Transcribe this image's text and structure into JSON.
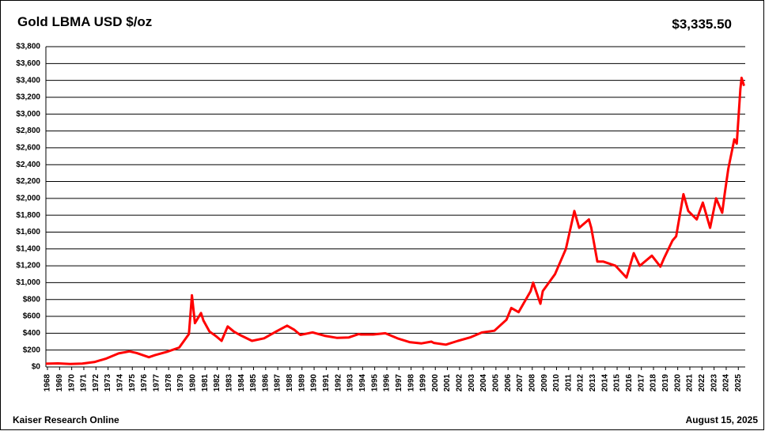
{
  "chart_data": {
    "type": "line",
    "title": "Gold LBMA USD $/oz",
    "annotations": {
      "latest": "$3,335.50",
      "source": "Kaiser Research Online",
      "date": "August 15, 2025"
    },
    "x": [
      1968,
      1969,
      1970,
      1971,
      1972,
      1973,
      1974,
      1974.9,
      1975.5,
      1976.5,
      1977,
      1978,
      1979,
      1979.8,
      1980.05,
      1980.3,
      1980.8,
      1981,
      1981.5,
      1982,
      1982.5,
      1983,
      1983.5,
      1984,
      1985,
      1986,
      1987,
      1987.9,
      1988.5,
      1989,
      1990,
      1991,
      1992,
      1993,
      1993.8,
      1994,
      1995,
      1996,
      1997,
      1998,
      1999,
      1999.8,
      2000,
      2001,
      2002,
      2003,
      2004,
      2005,
      2006,
      2006.4,
      2007,
      2008,
      2008.2,
      2008.8,
      2009,
      2010,
      2010.9,
      2011.6,
      2012,
      2012.8,
      2013,
      2013.5,
      2014,
      2015,
      2015.9,
      2016.5,
      2017,
      2018,
      2018.7,
      2019,
      2019.7,
      2020,
      2020.6,
      2021,
      2021.7,
      2022.2,
      2022.8,
      2023.3,
      2023.8,
      2024,
      2024.3,
      2024.8,
      2025,
      2025.3,
      2025.4,
      2025.6
    ],
    "series": [
      {
        "name": "Gold",
        "color": "#ff0000",
        "values": [
          38,
          42,
          36,
          40,
          58,
          100,
          160,
          185,
          165,
          115,
          140,
          180,
          230,
          390,
          850,
          520,
          640,
          550,
          420,
          370,
          310,
          480,
          420,
          380,
          310,
          340,
          420,
          490,
          440,
          380,
          410,
          370,
          345,
          350,
          390,
          385,
          385,
          400,
          340,
          295,
          280,
          300,
          285,
          265,
          310,
          350,
          410,
          430,
          560,
          700,
          650,
          900,
          1000,
          750,
          900,
          1100,
          1400,
          1850,
          1650,
          1750,
          1650,
          1250,
          1250,
          1200,
          1060,
          1350,
          1200,
          1320,
          1190,
          1290,
          1500,
          1550,
          2050,
          1850,
          1750,
          1950,
          1650,
          2000,
          1830,
          2050,
          2350,
          2700,
          2650,
          3300,
          3430,
          3335
        ]
      }
    ],
    "xlim": [
      1968,
      2025.7
    ],
    "xticks": [
      1968,
      1969,
      1970,
      1971,
      1972,
      1973,
      1974,
      1975,
      1976,
      1977,
      1978,
      1979,
      1980,
      1981,
      1982,
      1983,
      1984,
      1985,
      1986,
      1987,
      1988,
      1989,
      1990,
      1991,
      1992,
      1993,
      1994,
      1995,
      1996,
      1997,
      1998,
      1999,
      2000,
      2001,
      2002,
      2003,
      2004,
      2005,
      2006,
      2007,
      2008,
      2009,
      2010,
      2011,
      2012,
      2013,
      2014,
      2015,
      2016,
      2017,
      2018,
      2019,
      2020,
      2021,
      2022,
      2023,
      2024,
      2025
    ],
    "ylim": [
      0,
      3800
    ],
    "yticks": [
      {
        "value": 0,
        "label": "$0"
      },
      {
        "value": 200,
        "label": "$200"
      },
      {
        "value": 400,
        "label": "$400"
      },
      {
        "value": 600,
        "label": "$600"
      },
      {
        "value": 800,
        "label": "$800"
      },
      {
        "value": 1000,
        "label": "$1,000"
      },
      {
        "value": 1200,
        "label": "$1,200"
      },
      {
        "value": 1400,
        "label": "$1,400"
      },
      {
        "value": 1600,
        "label": "$1,600"
      },
      {
        "value": 1800,
        "label": "$1,800"
      },
      {
        "value": 2000,
        "label": "$2,000"
      },
      {
        "value": 2200,
        "label": "$2,200"
      },
      {
        "value": 2400,
        "label": "$2,400"
      },
      {
        "value": 2600,
        "label": "$2,600"
      },
      {
        "value": 2800,
        "label": "$2,800"
      },
      {
        "value": 3000,
        "label": "$3,000"
      },
      {
        "value": 3200,
        "label": "$3,200"
      },
      {
        "value": 3400,
        "label": "$3,400"
      },
      {
        "value": 3600,
        "label": "$3,600"
      },
      {
        "value": 3800,
        "label": "$3,800"
      }
    ],
    "grid": true
  }
}
